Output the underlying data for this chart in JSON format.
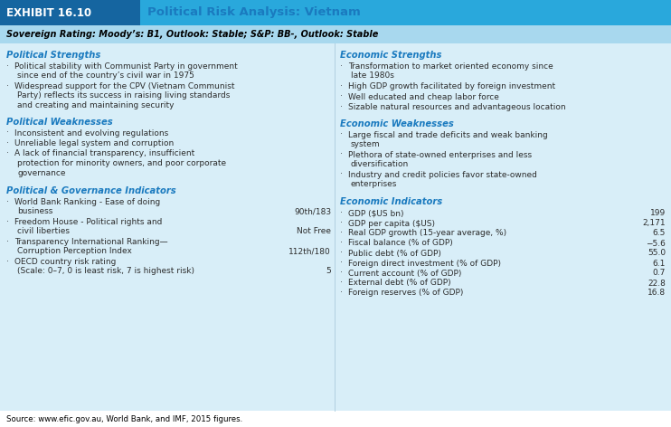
{
  "exhibit_label": "EXHIBIT 16.10",
  "title": "Political Risk Analysis: Vietnam",
  "sovereign_rating": "Sovereign Rating: Moody’s: B1, Outlook: Stable; S&P: BB-, Outlook: Stable",
  "header_bg": "#29A8DC",
  "exhibit_box_bg": "#1565A0",
  "subheader_bg": "#A8D8EE",
  "body_bg": "#D8EEF8",
  "title_color": "#1A7ABF",
  "section_color": "#1A7ABF",
  "body_color": "#2C2C2C",
  "source_text": "Source: www.efic.gov.au, World Bank, and IMF, 2015 figures.",
  "left_col": {
    "section1_title": "Political Strengths",
    "section1_items": [
      [
        "Political stability with Communist Party in government",
        "since end of the country’s civil war in 1975"
      ],
      [
        "Widespread support for the CPV (Vietnam Communist",
        "Party) reflects its success in raising living standards",
        "and creating and maintaining security"
      ]
    ],
    "section2_title": "Political Weaknesses",
    "section2_items": [
      [
        "Inconsistent and evolving regulations"
      ],
      [
        "Unreliable legal system and corruption"
      ],
      [
        "A lack of financial transparency, insufficient",
        "protection for minority owners, and poor corporate",
        "governance"
      ]
    ],
    "section3_title": "Political & Governance Indicators",
    "section3_items": [
      {
        "lines": [
          "World Bank Ranking - Ease of doing",
          "business"
        ],
        "value": "90th/183"
      },
      {
        "lines": [
          "Freedom House - Political rights and",
          "civil liberties"
        ],
        "value": "Not Free"
      },
      {
        "lines": [
          "Transparency International Ranking—",
          "Corruption Perception Index"
        ],
        "value": "112th/180"
      },
      {
        "lines": [
          "OECD country risk rating",
          "(Scale: 0–7, 0 is least risk, 7 is highest risk)"
        ],
        "value": "5"
      }
    ]
  },
  "right_col": {
    "section1_title": "Economic Strengths",
    "section1_items": [
      [
        "Transformation to market oriented economy since",
        "late 1980s"
      ],
      [
        "High GDP growth facilitated by foreign investment"
      ],
      [
        "Well educated and cheap labor force"
      ],
      [
        "Sizable natural resources and advantageous location"
      ]
    ],
    "section2_title": "Economic Weaknesses",
    "section2_items": [
      [
        "Large fiscal and trade deficits and weak banking",
        "system"
      ],
      [
        "Plethora of state-owned enterprises and less",
        "diversification"
      ],
      [
        "Industry and credit policies favor state-owned",
        "enterprises"
      ]
    ],
    "section3_title": "Economic Indicators",
    "section3_items": [
      {
        "lines": [
          "GDP ($US bn)"
        ],
        "value": "199"
      },
      {
        "lines": [
          "GDP per capita ($US)"
        ],
        "value": "2,171"
      },
      {
        "lines": [
          "Real GDP growth (15-year average, %)"
        ],
        "value": "6.5"
      },
      {
        "lines": [
          "Fiscal balance (% of GDP)"
        ],
        "value": "−5.6"
      },
      {
        "lines": [
          "Public debt (% of GDP)"
        ],
        "value": "55.0"
      },
      {
        "lines": [
          "Foreign direct investment (% of GDP)"
        ],
        "value": "6.1"
      },
      {
        "lines": [
          "Current account (% of GDP)"
        ],
        "value": "0.7"
      },
      {
        "lines": [
          "External debt (% of GDP)"
        ],
        "value": "22.8"
      },
      {
        "lines": [
          "Foreign reserves (% of GDP)"
        ],
        "value": "16.8"
      }
    ]
  }
}
